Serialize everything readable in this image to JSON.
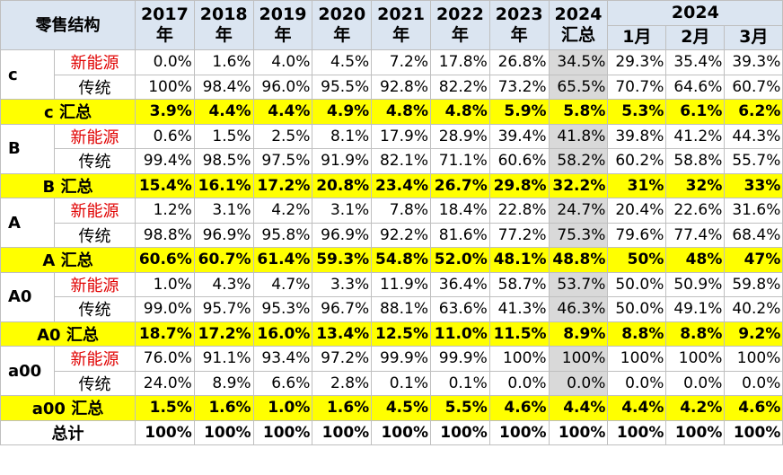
{
  "table": {
    "corner": "零售结构",
    "columns": [
      {
        "year": "2017",
        "unit": "年"
      },
      {
        "year": "2018",
        "unit": "年"
      },
      {
        "year": "2019",
        "unit": "年"
      },
      {
        "year": "2020",
        "unit": "年"
      },
      {
        "year": "2021",
        "unit": "年"
      },
      {
        "year": "2022",
        "unit": "年"
      },
      {
        "year": "2023",
        "unit": "年"
      },
      {
        "year": "2024",
        "unit": "汇总"
      }
    ],
    "month_group": "2024",
    "months": [
      "1月",
      "2月",
      "3月"
    ],
    "groups": [
      {
        "label": "c",
        "rows": [
          {
            "name": "新能源",
            "cells": [
              "0.0%",
              "1.6%",
              "4.0%",
              "4.5%",
              "7.2%",
              "17.8%",
              "26.8%",
              "34.5%",
              "29.3%",
              "35.4%",
              "39.3%"
            ]
          },
          {
            "name": "传统",
            "cells": [
              "100%",
              "98.4%",
              "96.0%",
              "95.5%",
              "92.8%",
              "82.2%",
              "73.2%",
              "65.5%",
              "70.7%",
              "64.6%",
              "60.7%"
            ]
          }
        ],
        "summary": {
          "name": "c 汇总",
          "cells": [
            "3.9%",
            "4.4%",
            "4.4%",
            "4.9%",
            "4.8%",
            "4.8%",
            "5.9%",
            "5.8%",
            "5.3%",
            "6.1%",
            "6.2%"
          ]
        }
      },
      {
        "label": "B",
        "rows": [
          {
            "name": "新能源",
            "cells": [
              "0.6%",
              "1.5%",
              "2.5%",
              "8.1%",
              "17.9%",
              "28.9%",
              "39.4%",
              "41.8%",
              "39.8%",
              "41.2%",
              "44.3%"
            ]
          },
          {
            "name": "传统",
            "cells": [
              "99.4%",
              "98.5%",
              "97.5%",
              "91.9%",
              "82.1%",
              "71.1%",
              "60.6%",
              "58.2%",
              "60.2%",
              "58.8%",
              "55.7%"
            ]
          }
        ],
        "summary": {
          "name": "B 汇总",
          "cells": [
            "15.4%",
            "16.1%",
            "17.2%",
            "20.8%",
            "23.4%",
            "26.7%",
            "29.8%",
            "32.2%",
            "31%",
            "32%",
            "33%"
          ]
        }
      },
      {
        "label": "A",
        "rows": [
          {
            "name": "新能源",
            "cells": [
              "1.2%",
              "3.1%",
              "4.2%",
              "3.1%",
              "7.8%",
              "18.4%",
              "22.8%",
              "24.7%",
              "20.4%",
              "22.6%",
              "31.6%"
            ]
          },
          {
            "name": "传统",
            "cells": [
              "98.8%",
              "96.9%",
              "95.8%",
              "96.9%",
              "92.2%",
              "81.6%",
              "77.2%",
              "75.3%",
              "79.6%",
              "77.4%",
              "68.4%"
            ]
          }
        ],
        "summary": {
          "name": "A 汇总",
          "cells": [
            "60.6%",
            "60.7%",
            "61.4%",
            "59.3%",
            "54.8%",
            "52.0%",
            "48.1%",
            "48.8%",
            "50%",
            "48%",
            "47%"
          ]
        }
      },
      {
        "label": "A0",
        "rows": [
          {
            "name": "新能源",
            "cells": [
              "1.0%",
              "4.3%",
              "4.7%",
              "3.3%",
              "11.9%",
              "36.4%",
              "58.7%",
              "53.7%",
              "50.0%",
              "50.9%",
              "59.8%"
            ]
          },
          {
            "name": "传统",
            "cells": [
              "99.0%",
              "95.7%",
              "95.3%",
              "96.7%",
              "88.1%",
              "63.6%",
              "41.3%",
              "46.3%",
              "50.0%",
              "49.1%",
              "40.2%"
            ]
          }
        ],
        "summary": {
          "name": "A0 汇总",
          "cells": [
            "18.7%",
            "17.2%",
            "16.0%",
            "13.4%",
            "12.5%",
            "11.0%",
            "11.5%",
            "8.9%",
            "8.8%",
            "8.8%",
            "9.2%"
          ]
        }
      },
      {
        "label": "a00",
        "rows": [
          {
            "name": "新能源",
            "cells": [
              "76.0%",
              "91.1%",
              "93.4%",
              "97.2%",
              "99.9%",
              "99.9%",
              "100%",
              "100%",
              "100%",
              "100%",
              "100%"
            ]
          },
          {
            "name": "传统",
            "cells": [
              "24.0%",
              "8.9%",
              "6.6%",
              "2.8%",
              "0.1%",
              "0.1%",
              "0.0%",
              "0.0%",
              "0.0%",
              "0.0%",
              "0.0%"
            ]
          }
        ],
        "summary": {
          "name": "a00 汇总",
          "cells": [
            "1.5%",
            "1.6%",
            "1.0%",
            "1.6%",
            "4.5%",
            "5.5%",
            "4.6%",
            "4.4%",
            "4.4%",
            "4.2%",
            "4.6%"
          ]
        }
      }
    ],
    "total": {
      "name": "总计",
      "cells": [
        "100%",
        "100%",
        "100%",
        "100%",
        "100%",
        "100%",
        "100%",
        "100%",
        "100%",
        "100%",
        "100%"
      ]
    }
  }
}
